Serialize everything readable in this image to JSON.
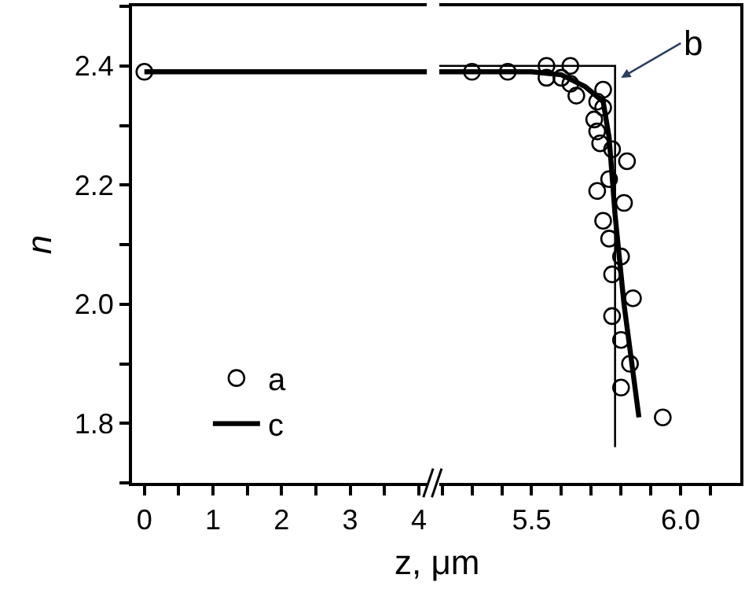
{
  "chart_data": [
    {
      "type": "line",
      "xlabel": "z, μm",
      "ylabel": "n",
      "xlim": [
        -0.18,
        4.12
      ],
      "ylim": [
        1.7,
        2.5
      ],
      "xticks": [
        0,
        {
          "value": 0.5,
          "label": null
        },
        1,
        {
          "value": 1.5,
          "label": null
        },
        2,
        {
          "value": 2.5,
          "label": null
        },
        3,
        {
          "value": 3.5,
          "label": null
        },
        4
      ],
      "yticks": [
        {
          "value": 1.7,
          "label": null
        },
        1.8,
        {
          "value": 1.9,
          "label": null
        },
        {
          "value": 2,
          "label": "2.0"
        },
        {
          "value": 2.1,
          "label": null
        },
        2.2,
        {
          "value": 2.3,
          "label": null
        },
        2.4,
        {
          "value": 2.5,
          "label": null
        }
      ],
      "series": [
        {
          "type": "scatter",
          "marker": "circle",
          "color": "#000000",
          "x": [
            0
          ],
          "values": [
            2.39
          ]
        },
        {
          "color": "#000000",
          "x": [
            0,
            4.12
          ],
          "values": [
            2.39,
            2.39
          ]
        }
      ]
    },
    {
      "type": "line",
      "xlim": [
        5.19,
        6.2
      ],
      "ylim": [
        1.7,
        2.5
      ],
      "tick_labels": "x",
      "xticks": [
        {
          "value": 5.2,
          "label": null
        },
        {
          "value": 5.3,
          "label": null
        },
        {
          "value": 5.4,
          "label": null
        },
        5.5,
        {
          "value": 5.6,
          "label": null
        },
        {
          "value": 5.7,
          "label": null
        },
        {
          "value": 5.8,
          "label": null
        },
        {
          "value": 5.9,
          "label": null
        },
        {
          "value": 6,
          "label": "6.0"
        },
        {
          "value": 6.1,
          "label": null
        }
      ],
      "legend": "bottom left",
      "annotations": [
        {
          "text": "b",
          "x": 5.8,
          "y": 2.38
        }
      ],
      "series": [
        {
          "type": "step",
          "color": "#000000",
          "x": [
            5.19,
            5.78
          ],
          "values": [
            2.4,
            1.76
          ]
        },
        {
          "type": "scatter",
          "name": "a",
          "marker": "circle",
          "color": "#000000",
          "x": [
            5.3,
            5.42,
            5.55,
            5.63,
            5.55,
            5.6,
            5.63,
            5.65,
            5.74,
            5.72,
            5.74,
            5.71,
            5.72,
            5.73,
            5.77,
            5.82,
            5.76,
            5.72,
            5.81,
            5.74,
            5.76,
            5.8,
            5.77,
            5.84,
            5.77,
            5.8,
            5.83,
            5.8,
            5.94
          ],
          "values": [
            2.39,
            2.39,
            2.4,
            2.4,
            2.38,
            2.38,
            2.37,
            2.35,
            2.36,
            2.34,
            2.33,
            2.31,
            2.29,
            2.27,
            2.26,
            2.24,
            2.21,
            2.19,
            2.17,
            2.14,
            2.11,
            2.08,
            2.05,
            2.01,
            1.98,
            1.94,
            1.9,
            1.86,
            1.81
          ]
        },
        {
          "name": "c",
          "color": "#000000",
          "x": [
            5.19,
            5.5,
            5.6,
            5.68,
            5.74,
            5.76,
            5.78,
            5.81,
            5.86
          ],
          "values": [
            2.39,
            2.39,
            2.385,
            2.365,
            2.34,
            2.28,
            2.15,
            2.0,
            1.81
          ]
        }
      ]
    }
  ]
}
